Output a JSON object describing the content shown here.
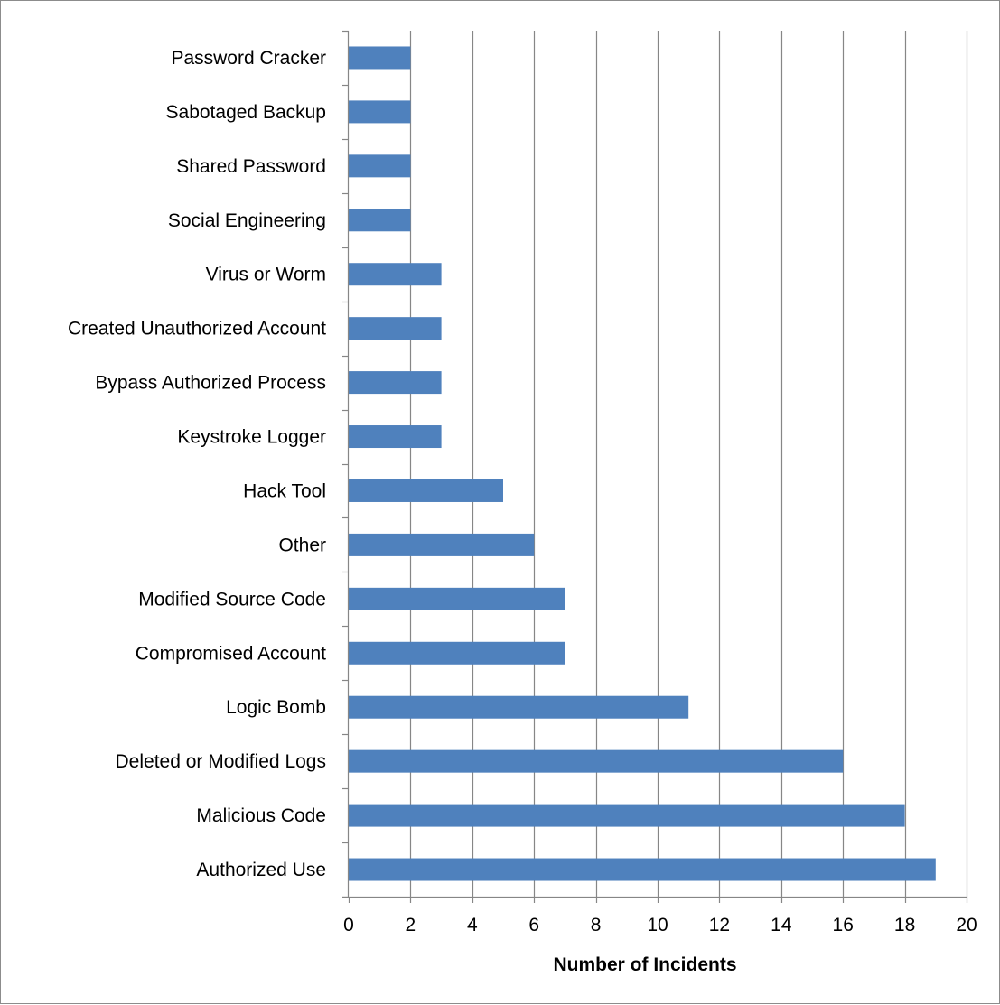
{
  "chart_data": {
    "type": "bar",
    "orientation": "horizontal",
    "categories": [
      "Password Cracker",
      "Sabotaged Backup",
      "Shared Password",
      "Social Engineering",
      "Virus or Worm",
      "Created Unauthorized Account",
      "Bypass Authorized Process",
      "Keystroke Logger",
      "Hack Tool",
      "Other",
      "Modified Source Code",
      "Compromised Account",
      "Logic Bomb",
      "Deleted or Modified Logs",
      "Malicious Code",
      "Authorized Use"
    ],
    "values": [
      2,
      2,
      2,
      2,
      3,
      3,
      3,
      3,
      5,
      6,
      7,
      7,
      11,
      16,
      18,
      19
    ],
    "title": "",
    "xlabel": "Number of Incidents",
    "ylabel": "",
    "xlim": [
      0,
      20
    ],
    "x_ticks": [
      0,
      2,
      4,
      6,
      8,
      10,
      12,
      14,
      16,
      18,
      20
    ],
    "grid": "vertical",
    "legend": "none",
    "bar_color": "#4f81bd",
    "grid_color": "#868686",
    "axis_color": "#868686"
  }
}
